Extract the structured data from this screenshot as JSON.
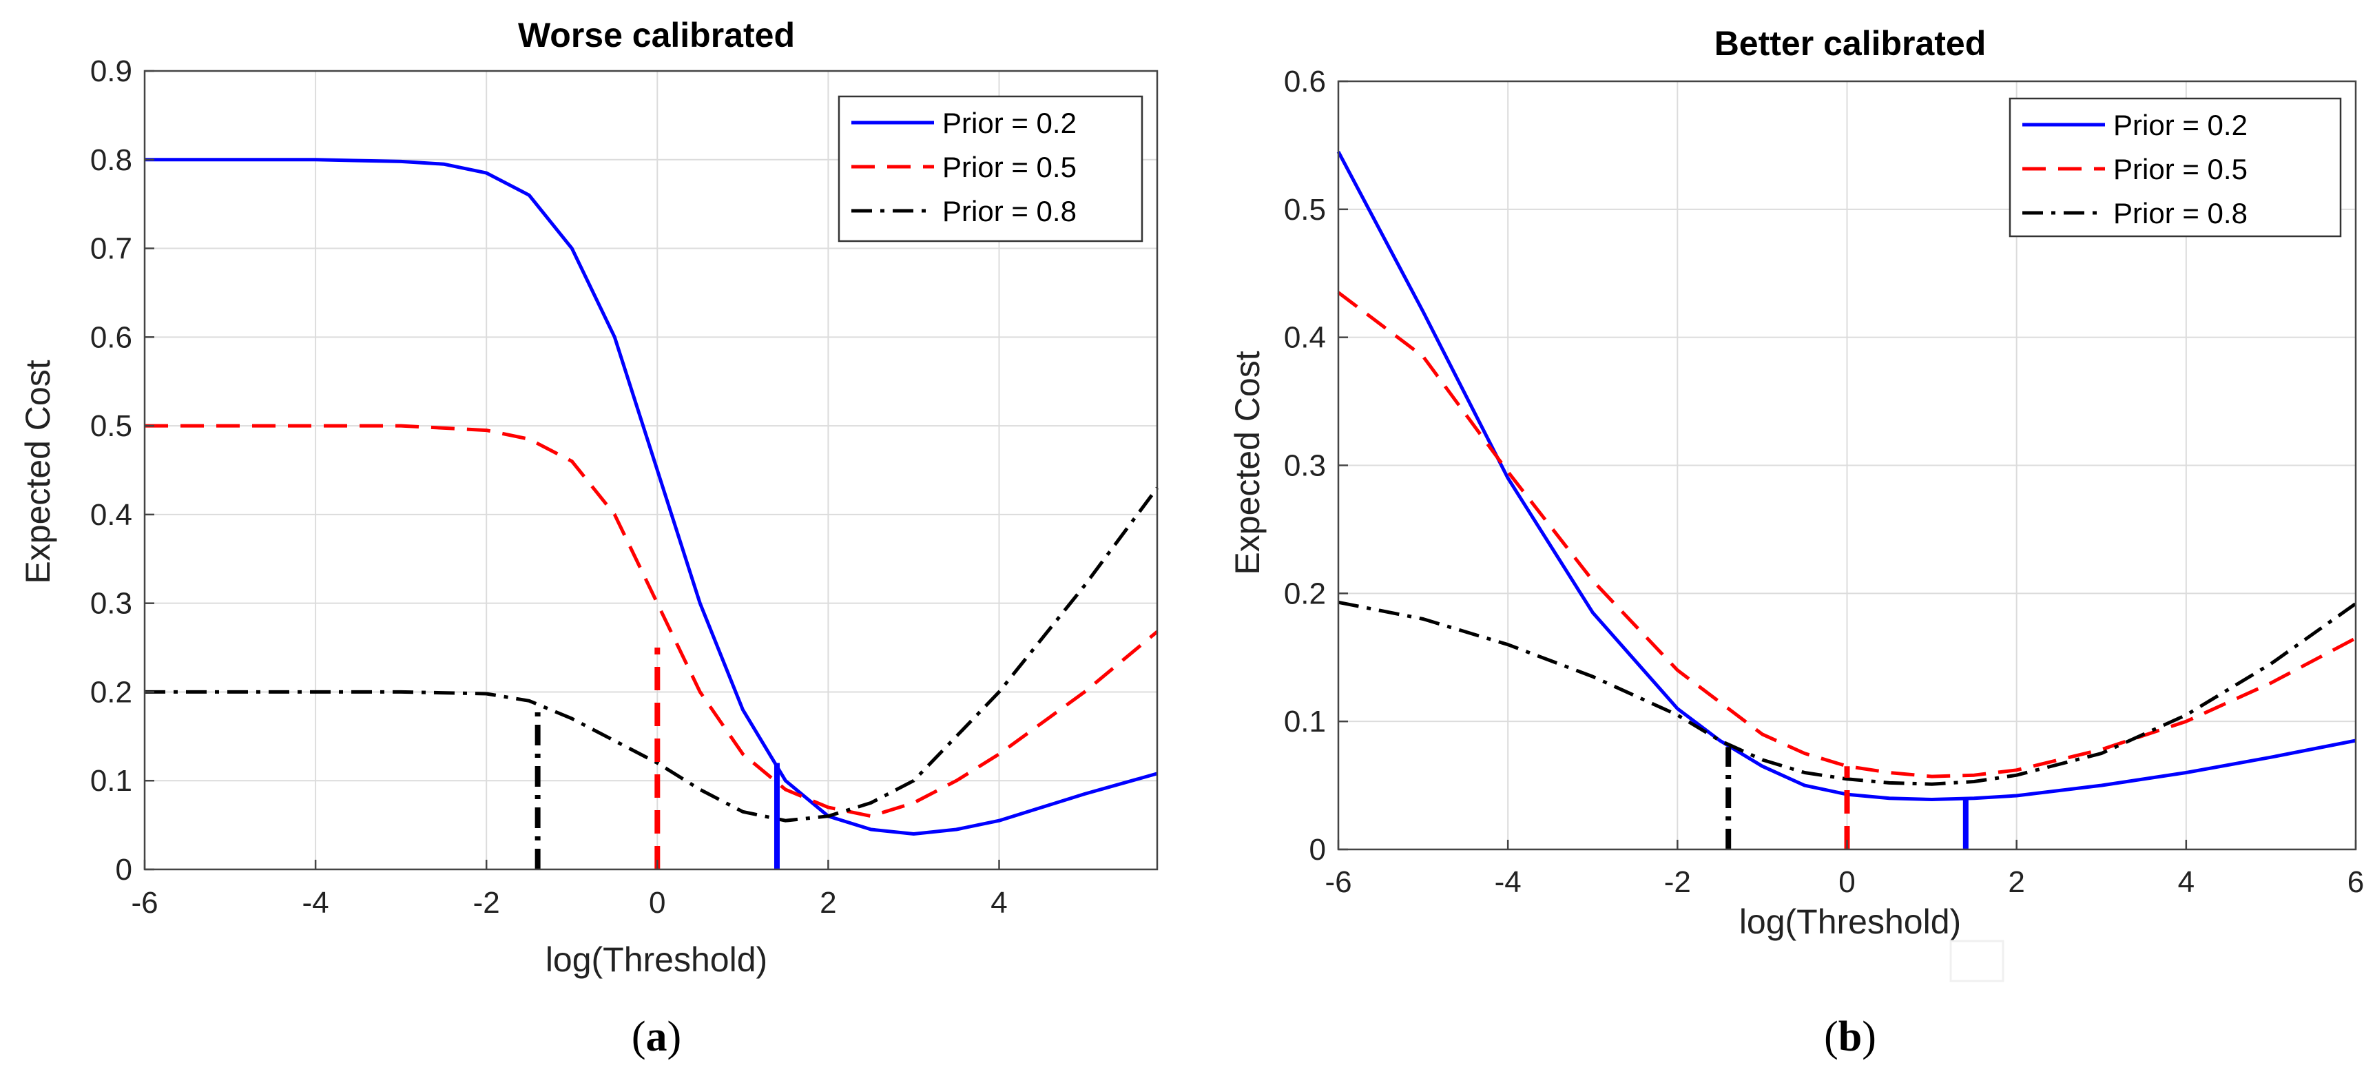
{
  "chart_data": [
    {
      "type": "line",
      "title": "Worse calibrated",
      "xlabel": "log(Threshold)",
      "ylabel": "Expected Cost",
      "caption_prefix": "(",
      "caption_letter": "a",
      "caption_suffix": ")",
      "xlim": [
        -6,
        5.85
      ],
      "ylim": [
        0,
        0.9
      ],
      "grid": true,
      "legend_position": "top-right",
      "xticks": [
        -6,
        -4,
        -2,
        0,
        2,
        4
      ],
      "yticks": [
        0,
        0.1,
        0.2,
        0.3,
        0.4,
        0.5,
        0.6,
        0.7,
        0.8,
        0.9
      ],
      "xtick_labels": [
        "-6",
        "-4",
        "-2",
        "0",
        "2",
        "4"
      ],
      "ytick_labels": [
        "0",
        "0.1",
        "0.2",
        "0.3",
        "0.4",
        "0.5",
        "0.6",
        "0.7",
        "0.8",
        "0.9"
      ],
      "series": [
        {
          "name": "Prior = 0.2",
          "color": "#0000ff",
          "style": "solid",
          "x": [
            -6,
            -4,
            -3,
            -2.5,
            -2,
            -1.5,
            -1,
            -0.5,
            0,
            0.5,
            1,
            1.5,
            2,
            2.5,
            3,
            3.5,
            4,
            4.5,
            5,
            5.85
          ],
          "y": [
            0.8,
            0.8,
            0.798,
            0.795,
            0.785,
            0.76,
            0.7,
            0.6,
            0.45,
            0.3,
            0.18,
            0.1,
            0.06,
            0.045,
            0.04,
            0.045,
            0.055,
            0.07,
            0.085,
            0.108
          ]
        },
        {
          "name": "Prior = 0.5",
          "color": "#ff0000",
          "style": "dashed",
          "x": [
            -6,
            -4,
            -3,
            -2,
            -1.5,
            -1,
            -0.5,
            0,
            0.5,
            1,
            1.5,
            2,
            2.5,
            3,
            3.5,
            4,
            4.5,
            5,
            5.85
          ],
          "y": [
            0.5,
            0.5,
            0.5,
            0.495,
            0.485,
            0.46,
            0.4,
            0.3,
            0.2,
            0.13,
            0.09,
            0.07,
            0.06,
            0.075,
            0.1,
            0.13,
            0.165,
            0.2,
            0.268
          ]
        },
        {
          "name": "Prior = 0.8",
          "color": "#000000",
          "style": "dashdot",
          "x": [
            -6,
            -4,
            -3,
            -2,
            -1.5,
            -1,
            -0.5,
            0,
            0.5,
            1,
            1.5,
            2,
            2.5,
            3,
            3.5,
            4,
            4.5,
            5,
            5.85
          ],
          "y": [
            0.2,
            0.2,
            0.2,
            0.198,
            0.19,
            0.17,
            0.145,
            0.12,
            0.09,
            0.065,
            0.055,
            0.06,
            0.075,
            0.1,
            0.15,
            0.2,
            0.26,
            0.32,
            0.43
          ]
        }
      ],
      "markers": [
        {
          "color": "#000000",
          "x": -1.4,
          "y": 0.185
        },
        {
          "color": "#ff0000",
          "x": 0.0,
          "y": 0.25
        },
        {
          "color": "#0000ff",
          "x": 1.4,
          "y": 0.12
        }
      ]
    },
    {
      "type": "line",
      "title": "Better calibrated",
      "xlabel": "log(Threshold)",
      "ylabel": "Expected Cost",
      "caption_prefix": "(",
      "caption_letter": "b",
      "caption_suffix": ")",
      "xlim": [
        -6,
        6
      ],
      "ylim": [
        0,
        0.6
      ],
      "grid": true,
      "legend_position": "top-right",
      "xticks": [
        -6,
        -4,
        -2,
        0,
        2,
        4,
        6
      ],
      "yticks": [
        0,
        0.1,
        0.2,
        0.3,
        0.4,
        0.5,
        0.6
      ],
      "xtick_labels": [
        "-6",
        "-4",
        "-2",
        "0",
        "2",
        "4",
        "6"
      ],
      "ytick_labels": [
        "0",
        "0.1",
        "0.2",
        "0.3",
        "0.4",
        "0.5",
        "0.6"
      ],
      "series": [
        {
          "name": "Prior = 0.2",
          "color": "#0000ff",
          "style": "solid",
          "x": [
            -6,
            -5,
            -4,
            -3,
            -2,
            -1.5,
            -1,
            -0.5,
            0,
            0.5,
            1,
            1.5,
            2,
            3,
            4,
            5,
            6
          ],
          "y": [
            0.545,
            0.42,
            0.29,
            0.185,
            0.11,
            0.085,
            0.065,
            0.05,
            0.043,
            0.04,
            0.039,
            0.04,
            0.042,
            0.05,
            0.06,
            0.072,
            0.085
          ]
        },
        {
          "name": "Prior = 0.5",
          "color": "#ff0000",
          "style": "dashed",
          "x": [
            -6,
            -5,
            -4,
            -3,
            -2,
            -1.5,
            -1,
            -0.5,
            0,
            0.5,
            1,
            1.5,
            2,
            3,
            4,
            5,
            6
          ],
          "y": [
            0.435,
            0.385,
            0.295,
            0.21,
            0.14,
            0.115,
            0.09,
            0.075,
            0.065,
            0.06,
            0.057,
            0.058,
            0.062,
            0.078,
            0.1,
            0.13,
            0.165
          ]
        },
        {
          "name": "Prior = 0.8",
          "color": "#000000",
          "style": "dashdot",
          "x": [
            -6,
            -5,
            -4,
            -3,
            -2,
            -1.5,
            -1,
            -0.5,
            0,
            0.5,
            1,
            1.5,
            2,
            3,
            4,
            5,
            6
          ],
          "y": [
            0.193,
            0.18,
            0.16,
            0.135,
            0.105,
            0.085,
            0.07,
            0.06,
            0.055,
            0.052,
            0.051,
            0.053,
            0.058,
            0.075,
            0.105,
            0.145,
            0.192
          ]
        }
      ],
      "markers": [
        {
          "color": "#000000",
          "x": -1.4,
          "y": 0.08
        },
        {
          "color": "#ff0000",
          "x": 0.0,
          "y": 0.065
        },
        {
          "color": "#0000ff",
          "x": 1.4,
          "y": 0.04
        }
      ]
    }
  ]
}
